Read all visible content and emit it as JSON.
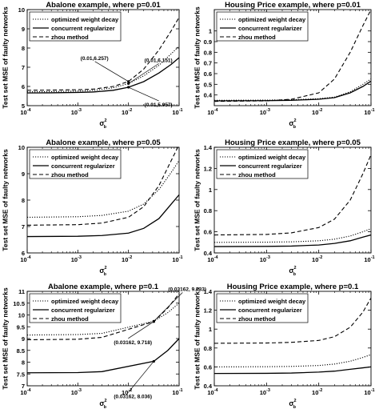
{
  "figure": {
    "ylabel": "Test set MSE of faulty networks",
    "xlabel_main": "σ",
    "xlabel_sup": "2",
    "xlabel_sub": "b"
  },
  "chart_data": [
    {
      "type": "line",
      "title": "Abalone example, where p=0.01",
      "xscale": "log",
      "xlim": [
        0.0001,
        0.1
      ],
      "xticks": [
        0.0001,
        0.001,
        0.01,
        0.1
      ],
      "ylim": [
        5,
        10
      ],
      "yticks": [
        5,
        6,
        7,
        8,
        9,
        10
      ],
      "legend": "top-left",
      "x": [
        0.0001,
        0.0003,
        0.001,
        0.002,
        0.005,
        0.01,
        0.02,
        0.04,
        0.07,
        0.1
      ],
      "series": [
        {
          "name": "optimized weight decay",
          "style": "dotted",
          "values": [
            5.72,
            5.73,
            5.76,
            5.79,
            5.93,
            6.151,
            6.55,
            7.1,
            7.7,
            8.1
          ]
        },
        {
          "name": "concurrent regularizer",
          "style": "solid",
          "values": [
            5.66,
            5.67,
            5.69,
            5.71,
            5.8,
            5.957,
            6.25,
            6.7,
            7.15,
            7.5
          ]
        },
        {
          "name": "zhou method",
          "style": "dashed",
          "values": [
            5.8,
            5.81,
            5.83,
            5.86,
            6.0,
            6.257,
            6.9,
            7.9,
            8.9,
            9.6
          ]
        }
      ],
      "annotations": [
        {
          "text": "(0.01,6.257)",
          "x": 0.01,
          "y": 6.257
        },
        {
          "text": "(0.01,6.151)",
          "x": 0.01,
          "y": 6.151
        },
        {
          "text": "(0.01,5.957)",
          "x": 0.01,
          "y": 5.957
        }
      ]
    },
    {
      "type": "line",
      "title": "Housing Price example, where p=0.01",
      "xscale": "log",
      "xlim": [
        0.0001,
        0.1
      ],
      "xticks": [
        0.0001,
        0.001,
        0.01,
        0.1
      ],
      "ylim": [
        0.3,
        1.2
      ],
      "yticks": [
        0.4,
        0.5,
        0.6,
        0.7,
        0.8,
        0.9,
        1.0
      ],
      "legend": "top-left",
      "x": [
        0.0001,
        0.001,
        0.003,
        0.01,
        0.02,
        0.04,
        0.07,
        0.1
      ],
      "series": [
        {
          "name": "optimized weight decay",
          "style": "dotted",
          "values": [
            0.35,
            0.352,
            0.355,
            0.365,
            0.38,
            0.43,
            0.5,
            0.55
          ]
        },
        {
          "name": "concurrent regularizer",
          "style": "solid",
          "values": [
            0.345,
            0.347,
            0.35,
            0.36,
            0.375,
            0.42,
            0.48,
            0.53
          ]
        },
        {
          "name": "zhou method",
          "style": "dashed",
          "values": [
            0.34,
            0.345,
            0.36,
            0.42,
            0.55,
            0.8,
            1.05,
            1.2
          ]
        }
      ]
    },
    {
      "type": "line",
      "title": "Abalone example, where p=0.05",
      "xscale": "log",
      "xlim": [
        0.0001,
        0.1
      ],
      "xticks": [
        0.0001,
        0.001,
        0.01,
        0.1
      ],
      "ylim": [
        6,
        10
      ],
      "yticks": [
        6,
        7,
        8,
        9,
        10
      ],
      "legend": "top-left",
      "x": [
        0.0001,
        0.001,
        0.003,
        0.01,
        0.02,
        0.04,
        0.07,
        0.1
      ],
      "series": [
        {
          "name": "optimized weight decay",
          "style": "dotted",
          "values": [
            7.35,
            7.37,
            7.42,
            7.58,
            7.85,
            8.4,
            9.05,
            9.5
          ]
        },
        {
          "name": "concurrent regularizer",
          "style": "solid",
          "values": [
            6.62,
            6.63,
            6.66,
            6.75,
            6.93,
            7.3,
            7.85,
            8.2
          ]
        },
        {
          "name": "zhou method",
          "style": "dashed",
          "values": [
            7.05,
            7.07,
            7.13,
            7.35,
            7.75,
            8.55,
            9.5,
            10.1
          ]
        }
      ]
    },
    {
      "type": "line",
      "title": "Housing Price example, where p=0.05",
      "xscale": "log",
      "xlim": [
        0.0001,
        0.1
      ],
      "xticks": [
        0.0001,
        0.001,
        0.01,
        0.1
      ],
      "ylim": [
        0.4,
        1.4
      ],
      "yticks": [
        0.4,
        0.6,
        0.8,
        1.0,
        1.2,
        1.4
      ],
      "legend": "top-left",
      "x": [
        0.0001,
        0.001,
        0.003,
        0.01,
        0.02,
        0.04,
        0.07,
        0.1
      ],
      "series": [
        {
          "name": "optimized weight decay",
          "style": "dotted",
          "values": [
            0.5,
            0.502,
            0.505,
            0.515,
            0.53,
            0.56,
            0.6,
            0.63
          ]
        },
        {
          "name": "concurrent regularizer",
          "style": "solid",
          "values": [
            0.46,
            0.462,
            0.465,
            0.475,
            0.49,
            0.515,
            0.55,
            0.57
          ]
        },
        {
          "name": "zhou method",
          "style": "dashed",
          "values": [
            0.57,
            0.575,
            0.59,
            0.64,
            0.72,
            0.9,
            1.15,
            1.33
          ]
        }
      ]
    },
    {
      "type": "line",
      "title": "Abalone example, where p=0.1",
      "xscale": "log",
      "xlim": [
        0.0001,
        0.1
      ],
      "xticks": [
        0.0001,
        0.001,
        0.01,
        0.1
      ],
      "ylim": [
        7,
        11
      ],
      "yticks": [
        7,
        7.5,
        8,
        8.5,
        9,
        9.5,
        10,
        10.5,
        11
      ],
      "legend": "top-left",
      "x": [
        0.0001,
        0.001,
        0.003,
        0.0316,
        0.06,
        0.1
      ],
      "series": [
        {
          "name": "optimized weight decay",
          "style": "dotted",
          "values": [
            9.15,
            9.17,
            9.22,
            9.733,
            10.1,
            10.5
          ]
        },
        {
          "name": "concurrent regularizer",
          "style": "solid",
          "values": [
            7.55,
            7.56,
            7.6,
            8.036,
            8.5,
            9.0
          ]
        },
        {
          "name": "zhou method",
          "style": "dashed",
          "values": [
            8.95,
            8.97,
            9.05,
            9.718,
            10.3,
            10.9
          ]
        }
      ],
      "annotations": [
        {
          "text": "(0.03162, 9.733)",
          "x": 0.0316,
          "y": 9.733
        },
        {
          "text": "(0.03162, 9.718)",
          "x": 0.0316,
          "y": 9.718
        },
        {
          "text": "(0.03162, 8.036)",
          "x": 0.0316,
          "y": 8.036
        }
      ]
    },
    {
      "type": "line",
      "title": "Housing Price example, where p=0.1",
      "xscale": "log",
      "xlim": [
        0.0001,
        0.1
      ],
      "xticks": [
        0.0001,
        0.001,
        0.01,
        0.1
      ],
      "ylim": [
        0.4,
        1.4
      ],
      "yticks": [
        0.4,
        0.6,
        0.8,
        1.0,
        1.2,
        1.4
      ],
      "legend": "top-left",
      "x": [
        0.0001,
        0.001,
        0.003,
        0.01,
        0.02,
        0.04,
        0.07,
        0.1
      ],
      "series": [
        {
          "name": "optimized weight decay",
          "style": "dotted",
          "values": [
            0.6,
            0.602,
            0.605,
            0.615,
            0.63,
            0.66,
            0.7,
            0.73
          ]
        },
        {
          "name": "concurrent regularizer",
          "style": "solid",
          "values": [
            0.53,
            0.532,
            0.535,
            0.545,
            0.555,
            0.575,
            0.59,
            0.6
          ]
        },
        {
          "name": "zhou method",
          "style": "dashed",
          "values": [
            0.85,
            0.853,
            0.86,
            0.88,
            0.92,
            1.02,
            1.18,
            1.33
          ]
        }
      ]
    }
  ]
}
